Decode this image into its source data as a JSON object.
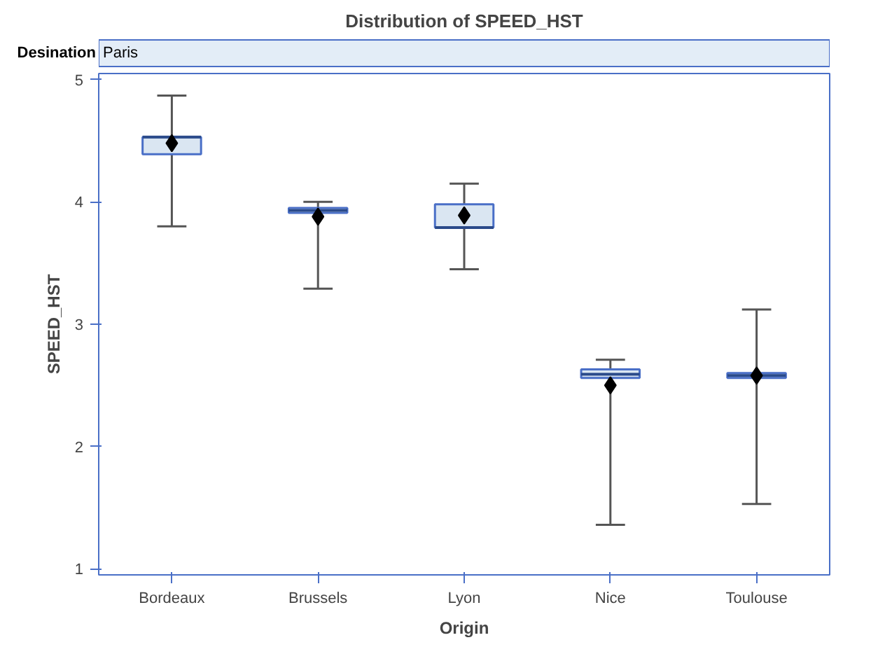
{
  "chart_data": {
    "type": "box",
    "title": "Distribution of SPEED_HST",
    "xlabel": "Origin",
    "ylabel": "SPEED_HST",
    "annotations": [
      "Desination",
      "Paris"
    ],
    "categories": [
      "Bordeaux",
      "Brussels",
      "Lyon",
      "Nice",
      "Toulouse"
    ],
    "boxes": [
      {
        "low": 3.8,
        "q1": 4.39,
        "median": 4.53,
        "q3": 4.53,
        "high": 4.87,
        "mean": 4.48
      },
      {
        "low": 3.29,
        "q1": 3.91,
        "median": 3.93,
        "q3": 3.95,
        "high": 4.0,
        "mean": 3.88
      },
      {
        "low": 3.45,
        "q1": 3.79,
        "median": 3.79,
        "q3": 3.98,
        "high": 4.15,
        "mean": 3.89
      },
      {
        "low": 1.36,
        "q1": 2.56,
        "median": 2.59,
        "q3": 2.63,
        "high": 2.71,
        "mean": 2.5
      },
      {
        "low": 1.53,
        "q1": 2.56,
        "median": 2.58,
        "q3": 2.6,
        "high": 3.12,
        "mean": 2.58
      }
    ],
    "color": "#dae6f2",
    "ylim": [
      0.95,
      5.05
    ],
    "yticks": [
      1,
      2,
      3,
      4,
      5
    ],
    "grid": false,
    "marker": "diamond"
  }
}
